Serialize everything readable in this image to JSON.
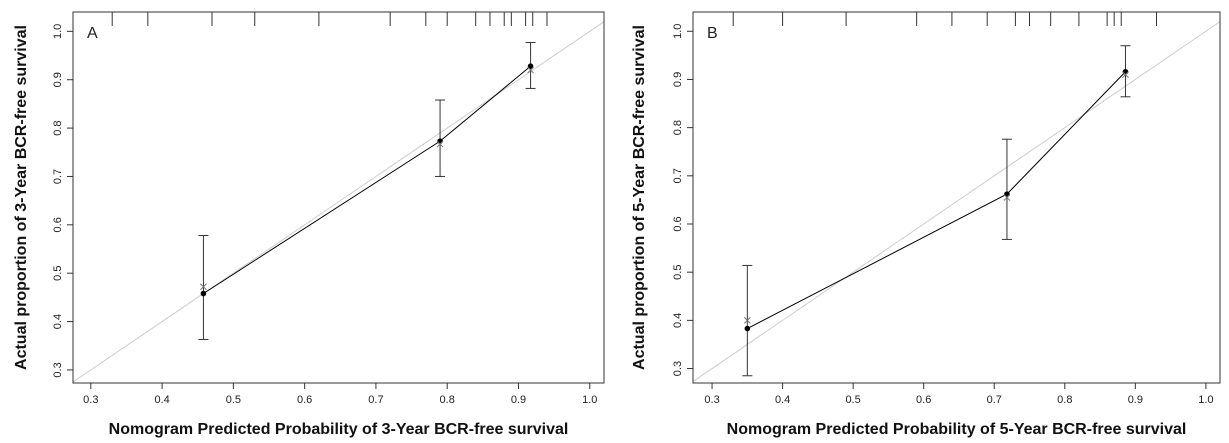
{
  "chart_data": [
    {
      "type": "calibration",
      "panel_label": "A",
      "xlabel": "Nomogram Predicted Probability of 3-Year BCR-free survival",
      "ylabel": "Actual proportion of 3-Year BCR-free survival",
      "x": [
        0.458,
        0.79,
        0.917
      ],
      "series": [
        {
          "color": "#000000",
          "values": [
            0.458,
            0.773,
            0.928
          ],
          "lower": [
            0.363,
            0.7,
            0.882
          ],
          "upper": [
            0.578,
            0.858,
            0.977
          ]
        },
        {
          "color": "#777777",
          "values": [
            0.472,
            0.767,
            0.92
          ]
        }
      ],
      "rug": [
        0.33,
        0.38,
        0.47,
        0.53,
        0.62,
        0.72,
        0.77,
        0.8,
        0.84,
        0.86,
        0.88,
        0.89,
        0.91,
        0.92,
        0.94
      ],
      "xlim": [
        0.275,
        1.02
      ],
      "ylim": [
        0.273,
        1.04
      ],
      "xticks": [
        0.3,
        0.4,
        0.5,
        0.6,
        0.7,
        0.8,
        0.9,
        {
          "value": 1.0,
          "label": "1.0"
        }
      ],
      "yticks": [
        0.3,
        0.4,
        0.5,
        0.6,
        0.7,
        0.8,
        0.9,
        {
          "value": 1.0,
          "label": "1.0"
        }
      ]
    },
    {
      "type": "calibration",
      "panel_label": "B",
      "xlabel": "Nomogram Predicted Probability of 5-Year BCR-free survival",
      "ylabel": "Actual proportion of 5-Year BCR-free survival",
      "x": [
        0.35,
        0.718,
        0.886
      ],
      "series": [
        {
          "color": "#000000",
          "values": [
            0.383,
            0.662,
            0.916
          ],
          "lower": [
            0.285,
            0.568,
            0.864
          ],
          "upper": [
            0.514,
            0.776,
            0.97
          ]
        },
        {
          "color": "#777777",
          "values": [
            0.4,
            0.655,
            0.91
          ]
        }
      ],
      "rug": [
        0.33,
        0.4,
        0.49,
        0.59,
        0.64,
        0.69,
        0.73,
        0.75,
        0.78,
        0.82,
        0.86,
        0.87,
        0.88,
        0.93
      ],
      "xlim": [
        0.273,
        1.02
      ],
      "ylim": [
        0.27,
        1.04
      ],
      "xticks": [
        0.3,
        0.4,
        0.5,
        0.6,
        0.7,
        0.8,
        0.9,
        {
          "value": 1.0,
          "label": "1.0"
        }
      ],
      "yticks": [
        0.3,
        0.4,
        0.5,
        0.6,
        0.7,
        0.8,
        0.9,
        {
          "value": 1.0,
          "label": "1.0"
        }
      ]
    }
  ]
}
